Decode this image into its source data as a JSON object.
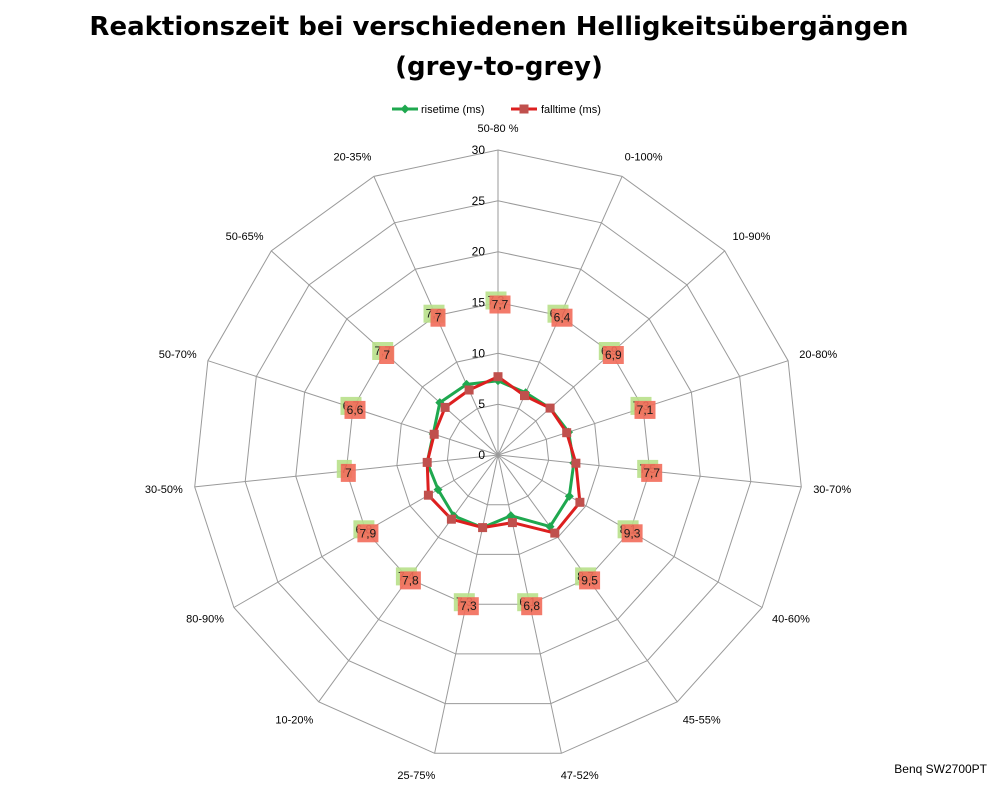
{
  "footer_note": "Benq SW2700PT",
  "chart_data": {
    "type": "radar",
    "title_line1": "Reaktionszeit bei verschiedenen Helligkeitsübergängen",
    "title_line2": "(grey-to-grey)",
    "categories": [
      "50-80 %",
      "0-100%",
      "10-90%",
      "20-80%",
      "30-70%",
      "40-60%",
      "45-55%",
      "47-52%",
      "25-75%",
      "10-20%",
      "80-90%",
      "30-50%",
      "50-70%",
      "50-65%",
      "20-35%"
    ],
    "rlim": [
      0,
      30
    ],
    "ticks": [
      0,
      5,
      10,
      15,
      20,
      25,
      30
    ],
    "tick_labels": [
      "0",
      "5",
      "10",
      "15",
      "20",
      "25",
      "30"
    ],
    "grid": true,
    "legend_position": "top",
    "series": [
      {
        "name": "risetime (ms)",
        "color": "#1fa84f",
        "marker": "diamond",
        "label_bg": "#b8e08a",
        "values": [
          7.3,
          6.7,
          6.9,
          7.3,
          7.5,
          8.1,
          8.7,
          6.1,
          7.3,
          7.4,
          6.8,
          7.0,
          6.7,
          7.7,
          7.6
        ],
        "labels": [
          "7,3",
          "6,7",
          "6,9",
          "7,3",
          "7,5",
          "8,1",
          "8,7",
          "6,1",
          "7,3",
          "7,4",
          "6,8",
          "7",
          "6,7",
          "7,7",
          "7,6"
        ]
      },
      {
        "name": "falltime (ms)",
        "color": "#dd1f1f",
        "marker": "square",
        "label_bg": "#f26b5a",
        "values": [
          7.7,
          6.4,
          6.9,
          7.1,
          7.7,
          9.3,
          9.5,
          6.8,
          7.3,
          7.8,
          7.9,
          7.0,
          6.6,
          7.0,
          7.0
        ],
        "labels": [
          "7,7",
          "6,4",
          "6,9",
          "7,1",
          "7,7",
          "9,3",
          "9,5",
          "6,8",
          "7,3",
          "7,8",
          "7,9",
          "7",
          "6,6",
          "7",
          "7"
        ]
      }
    ]
  }
}
